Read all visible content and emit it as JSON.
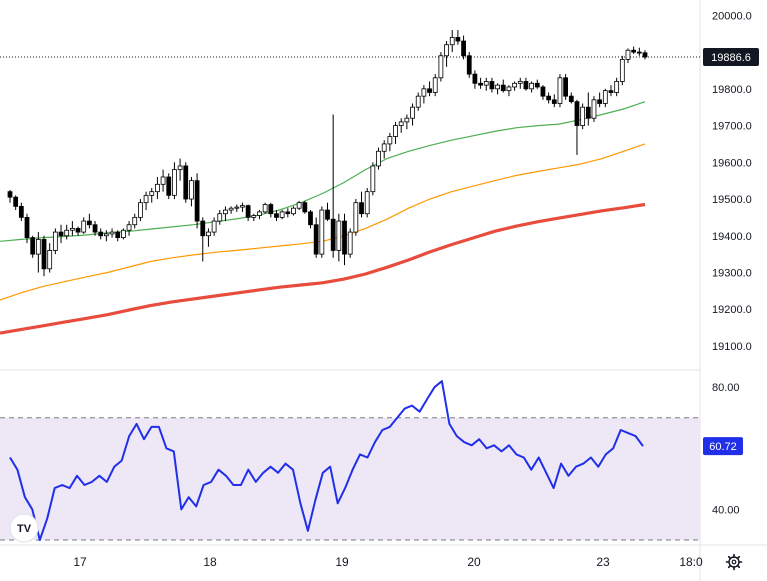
{
  "chart_data": [
    {
      "type": "candlestick",
      "title": "",
      "y_ticks": [
        19100,
        19200,
        19300,
        19400,
        19500,
        19600,
        19700,
        19800,
        19900,
        20000
      ],
      "y_tick_labels": [
        "19100.0",
        "19200.0",
        "19300.0",
        "19400.0",
        "19500.0",
        "19600.0",
        "19700.0",
        "19800.0",
        "19900.0",
        "20000.0"
      ],
      "ylim": [
        19040,
        20020
      ],
      "last_price": 19886.6,
      "last_price_label": "19886.6",
      "x_tick_labels": [
        "17",
        "18",
        "19",
        "20",
        "23",
        "18:0"
      ],
      "up_color": "#ffffff",
      "down_color": "#000000",
      "candles": [
        [
          19520,
          19525,
          19490,
          19505
        ],
        [
          19505,
          19510,
          19470,
          19480
        ],
        [
          19480,
          19490,
          19440,
          19450
        ],
        [
          19450,
          19460,
          19380,
          19395
        ],
        [
          19395,
          19400,
          19340,
          19350
        ],
        [
          19350,
          19410,
          19300,
          19390
        ],
        [
          19390,
          19400,
          19290,
          19310
        ],
        [
          19310,
          19380,
          19300,
          19360
        ],
        [
          19360,
          19420,
          19350,
          19410
        ],
        [
          19410,
          19430,
          19380,
          19400
        ],
        [
          19400,
          19430,
          19390,
          19415
        ],
        [
          19415,
          19440,
          19400,
          19420
        ],
        [
          19420,
          19425,
          19400,
          19410
        ],
        [
          19410,
          19450,
          19405,
          19440
        ],
        [
          19440,
          19460,
          19420,
          19430
        ],
        [
          19430,
          19440,
          19400,
          19410
        ],
        [
          19410,
          19420,
          19390,
          19400
        ],
        [
          19400,
          19415,
          19385,
          19405
        ],
        [
          19405,
          19420,
          19395,
          19410
        ],
        [
          19410,
          19415,
          19385,
          19395
        ],
        [
          19395,
          19420,
          19390,
          19415
        ],
        [
          19415,
          19440,
          19400,
          19430
        ],
        [
          19430,
          19460,
          19420,
          19450
        ],
        [
          19450,
          19500,
          19440,
          19490
        ],
        [
          19490,
          19520,
          19470,
          19510
        ],
        [
          19510,
          19530,
          19490,
          19520
        ],
        [
          19520,
          19560,
          19500,
          19540
        ],
        [
          19540,
          19580,
          19520,
          19560
        ],
        [
          19560,
          19570,
          19500,
          19510
        ],
        [
          19510,
          19600,
          19500,
          19580
        ],
        [
          19580,
          19610,
          19550,
          19590
        ],
        [
          19590,
          19600,
          19490,
          19500
        ],
        [
          19500,
          19560,
          19480,
          19550
        ],
        [
          19550,
          19570,
          19420,
          19440
        ],
        [
          19440,
          19450,
          19330,
          19400
        ],
        [
          19400,
          19420,
          19370,
          19410
        ],
        [
          19410,
          19450,
          19400,
          19440
        ],
        [
          19440,
          19470,
          19430,
          19460
        ],
        [
          19460,
          19480,
          19440,
          19470
        ],
        [
          19470,
          19480,
          19460,
          19475
        ],
        [
          19475,
          19485,
          19465,
          19478
        ],
        [
          19478,
          19490,
          19465,
          19482
        ],
        [
          19482,
          19485,
          19440,
          19450
        ],
        [
          19450,
          19460,
          19440,
          19455
        ],
        [
          19455,
          19470,
          19445,
          19465
        ],
        [
          19465,
          19490,
          19460,
          19485
        ],
        [
          19485,
          19490,
          19450,
          19460
        ],
        [
          19460,
          19470,
          19440,
          19450
        ],
        [
          19450,
          19470,
          19445,
          19465
        ],
        [
          19465,
          19475,
          19450,
          19460
        ],
        [
          19460,
          19480,
          19455,
          19475
        ],
        [
          19475,
          19495,
          19470,
          19490
        ],
        [
          19490,
          19495,
          19460,
          19465
        ],
        [
          19465,
          19470,
          19420,
          19430
        ],
        [
          19430,
          19450,
          19340,
          19350
        ],
        [
          19350,
          19480,
          19340,
          19470
        ],
        [
          19470,
          19490,
          19440,
          19445
        ],
        [
          19445,
          19730,
          19340,
          19360
        ],
        [
          19360,
          19460,
          19330,
          19440
        ],
        [
          19440,
          19460,
          19320,
          19350
        ],
        [
          19350,
          19420,
          19340,
          19410
        ],
        [
          19410,
          19500,
          19400,
          19490
        ],
        [
          19490,
          19520,
          19450,
          19460
        ],
        [
          19460,
          19530,
          19450,
          19520
        ],
        [
          19520,
          19600,
          19510,
          19590
        ],
        [
          19590,
          19640,
          19580,
          19630
        ],
        [
          19630,
          19660,
          19610,
          19650
        ],
        [
          19650,
          19680,
          19630,
          19670
        ],
        [
          19670,
          19710,
          19650,
          19700
        ],
        [
          19700,
          19720,
          19680,
          19710
        ],
        [
          19710,
          19730,
          19690,
          19720
        ],
        [
          19720,
          19760,
          19700,
          19750
        ],
        [
          19750,
          19790,
          19740,
          19780
        ],
        [
          19780,
          19810,
          19760,
          19800
        ],
        [
          19800,
          19820,
          19780,
          19790
        ],
        [
          19790,
          19840,
          19780,
          19830
        ],
        [
          19830,
          19900,
          19820,
          19890
        ],
        [
          19890,
          19930,
          19860,
          19920
        ],
        [
          19920,
          19960,
          19900,
          19940
        ],
        [
          19940,
          19960,
          19920,
          19930
        ],
        [
          19930,
          19945,
          19880,
          19890
        ],
        [
          19890,
          19900,
          19830,
          19840
        ],
        [
          19840,
          19850,
          19800,
          19815
        ],
        [
          19815,
          19830,
          19800,
          19810
        ],
        [
          19810,
          19830,
          19795,
          19820
        ],
        [
          19820,
          19830,
          19790,
          19800
        ],
        [
          19800,
          19815,
          19785,
          19810
        ],
        [
          19810,
          19825,
          19790,
          19795
        ],
        [
          19795,
          19810,
          19780,
          19805
        ],
        [
          19805,
          19820,
          19795,
          19815
        ],
        [
          19815,
          19830,
          19800,
          19820
        ],
        [
          19820,
          19830,
          19795,
          19800
        ],
        [
          19800,
          19820,
          19790,
          19815
        ],
        [
          19815,
          19825,
          19800,
          19805
        ],
        [
          19805,
          19810,
          19770,
          19780
        ],
        [
          19780,
          19790,
          19760,
          19770
        ],
        [
          19770,
          19785,
          19750,
          19760
        ],
        [
          19760,
          19840,
          19750,
          19830
        ],
        [
          19830,
          19840,
          19770,
          19780
        ],
        [
          19780,
          19790,
          19760,
          19765
        ],
        [
          19765,
          19770,
          19620,
          19700
        ],
        [
          19700,
          19760,
          19690,
          19750
        ],
        [
          19750,
          19790,
          19700,
          19720
        ],
        [
          19720,
          19780,
          19710,
          19770
        ],
        [
          19770,
          19790,
          19750,
          19760
        ],
        [
          19760,
          19800,
          19750,
          19795
        ],
        [
          19795,
          19810,
          19780,
          19790
        ],
        [
          19790,
          19830,
          19780,
          19820
        ],
        [
          19820,
          19890,
          19810,
          19880
        ],
        [
          19880,
          19910,
          19870,
          19905
        ],
        [
          19905,
          19915,
          19895,
          19900
        ],
        [
          19900,
          19912,
          19890,
          19898
        ],
        [
          19898,
          19905,
          19880,
          19886.6
        ]
      ],
      "moving_averages": [
        {
          "color": "#4caf50",
          "values": [
            19385,
            19390,
            19395,
            19398,
            19402,
            19408,
            19412,
            19418,
            19424,
            19430,
            19438,
            19446,
            19456,
            19470,
            19490,
            19515,
            19545,
            19580,
            19610,
            19630,
            19646,
            19660,
            19672,
            19684,
            19694,
            19700,
            19704,
            19716,
            19730,
            19745,
            19765
          ]
        },
        {
          "color": "#ff9800",
          "values": [
            19225,
            19245,
            19262,
            19275,
            19288,
            19300,
            19315,
            19330,
            19340,
            19348,
            19355,
            19360,
            19366,
            19372,
            19378,
            19385,
            19400,
            19420,
            19445,
            19475,
            19500,
            19520,
            19535,
            19550,
            19564,
            19575,
            19585,
            19595,
            19610,
            19630,
            19650
          ]
        },
        {
          "color": "#e74c3c",
          "values": [
            19135,
            19145,
            19155,
            19165,
            19175,
            19185,
            19198,
            19210,
            19220,
            19228,
            19236,
            19244,
            19252,
            19260,
            19266,
            19272,
            19282,
            19296,
            19314,
            19334,
            19356,
            19376,
            19394,
            19412,
            19426,
            19438,
            19448,
            19458,
            19468,
            19476,
            19485
          ]
        }
      ]
    },
    {
      "type": "line",
      "title": "",
      "y_ticks": [
        40,
        80
      ],
      "y_tick_labels": [
        "40.00",
        "80.00"
      ],
      "ylim": [
        30,
        84
      ],
      "band": [
        30,
        70
      ],
      "line_color": "#2130e8",
      "band_color": "#ede7f6",
      "last_value": 60.72,
      "last_value_label": "60.72",
      "values": [
        57,
        53,
        44,
        40,
        30,
        37,
        47,
        48,
        47,
        51,
        48,
        49,
        51,
        49,
        54,
        56,
        64,
        68,
        63,
        67,
        67,
        60,
        59,
        40,
        44,
        41,
        48,
        49,
        53,
        51,
        48,
        48,
        53,
        49,
        52,
        54,
        52,
        55,
        53,
        42,
        33,
        43,
        52,
        54,
        42,
        47,
        53,
        58,
        57,
        62,
        66,
        67,
        70,
        73,
        74,
        72,
        76,
        80,
        82,
        68,
        64,
        62,
        61,
        63,
        60,
        61,
        59,
        61,
        58,
        57,
        53,
        57,
        52,
        47,
        55,
        51,
        54,
        55,
        57,
        54,
        58,
        60,
        66,
        65,
        64,
        60.72
      ]
    }
  ],
  "settings_icon": "gear-icon",
  "logo_text": "TV"
}
